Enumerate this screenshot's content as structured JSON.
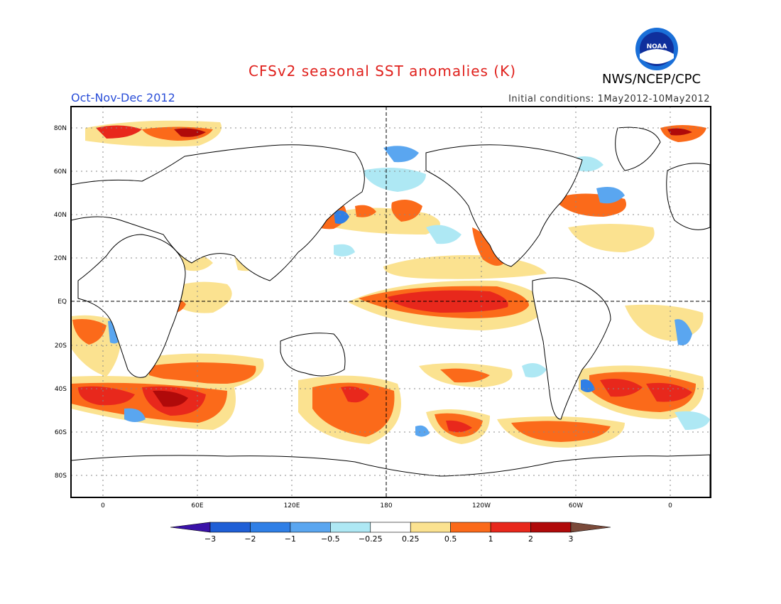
{
  "header": {
    "title": "CFSv2 seasonal SST anomalies (K)",
    "agency": "NWS/NCEP/CPC",
    "logo_text": "NOAA",
    "season": "Oct-Nov-Dec 2012",
    "initial_conditions": "Initial conditions: 1May2012-10May2012"
  },
  "map": {
    "projection": "equirectangular",
    "lon_center": 180,
    "lat_range": [
      -90,
      90
    ],
    "dashed_lines": [
      "EQ",
      "180"
    ],
    "y_ticks": [
      "80N",
      "60N",
      "40N",
      "20N",
      "EQ",
      "20S",
      "40S",
      "60S",
      "80S"
    ],
    "x_ticks": [
      "0",
      "60E",
      "120E",
      "180",
      "120W",
      "60W",
      "0"
    ]
  },
  "colorbar": {
    "labels": [
      "-3",
      "-2",
      "-1",
      "-0.5",
      "-0.25",
      "0.25",
      "0.5",
      "1",
      "2",
      "3"
    ],
    "colors": [
      "#3a12a8",
      "#1f5fd6",
      "#2f7fe6",
      "#5aa6f0",
      "#aee8f4",
      "#ffffff",
      "#fbe290",
      "#fb6a1a",
      "#e8281c",
      "#b00a0a",
      "#7a4a3a"
    ]
  },
  "anomaly_colors": {
    "weak_pos": "#fbe290",
    "pos": "#fb6a1a",
    "strong_pos": "#e8281c",
    "very_strong_pos": "#b00a0a",
    "weak_neg": "#aee8f4",
    "neg": "#5aa6f0"
  }
}
